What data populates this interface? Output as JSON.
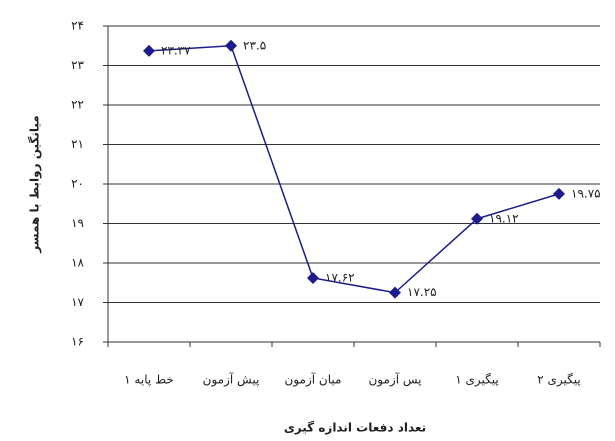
{
  "chart_data": {
    "type": "line",
    "y_label": "میانگین روابط با همسر",
    "x_label": "تعداد دفعات اندازه گیری",
    "categories": [
      "خط پایه ۱",
      "پیش آزمون",
      "میان آزمون",
      "پس آزمون",
      "پیگیری ۱",
      "پیگیری ۲"
    ],
    "series": [
      {
        "color": "#1c1c8c",
        "values": [
          23.37,
          23.5,
          17.62,
          17.25,
          19.12,
          19.75
        ],
        "value_labels": [
          "۲۳.۳۷",
          "۲۳.۵",
          "۱۷.۶۲",
          "۱۷.۲۵",
          "۱۹.۱۲",
          "۱۹.۷۵"
        ]
      }
    ],
    "ylim": [
      16,
      24
    ],
    "yticks": [
      {
        "value": 16,
        "label": "۱۶"
      },
      {
        "value": 17,
        "label": "۱۷"
      },
      {
        "value": 18,
        "label": "۱۸"
      },
      {
        "value": 19,
        "label": "۱۹"
      },
      {
        "value": 20,
        "label": "۲۰"
      },
      {
        "value": 21,
        "label": "۲۱"
      },
      {
        "value": 22,
        "label": "۲۲"
      },
      {
        "value": 23,
        "label": "۲۳"
      },
      {
        "value": 24,
        "label": "۲۴"
      }
    ],
    "grid": true
  }
}
